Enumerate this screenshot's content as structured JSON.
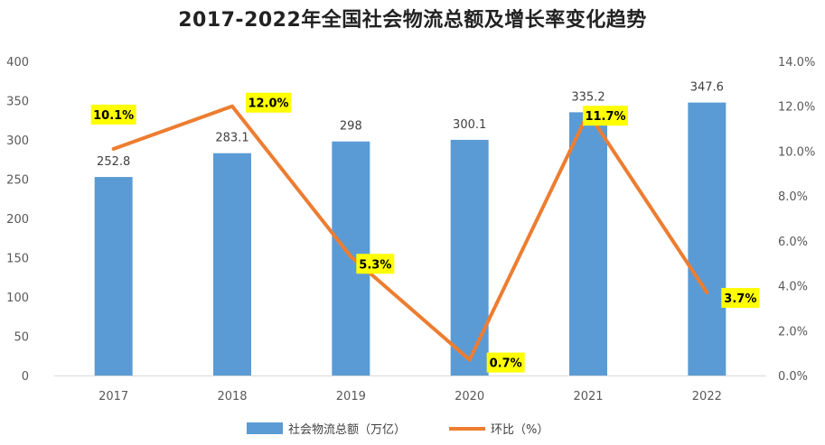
{
  "chart_data": {
    "type": "bar",
    "title": "2017-2022年全国社会物流总额及增长率变化趋势",
    "categories": [
      "2017",
      "2018",
      "2019",
      "2020",
      "2021",
      "2022"
    ],
    "series": [
      {
        "name": "社会物流总额（万亿）",
        "type": "bar",
        "axis": "left",
        "values": [
          252.8,
          283.1,
          298,
          300.1,
          335.2,
          347.6
        ],
        "labels": [
          "252.8",
          "283.1",
          "298",
          "300.1",
          "335.2",
          "347.6"
        ],
        "color": "#5B9BD5"
      },
      {
        "name": "环比（%）",
        "type": "line",
        "axis": "right",
        "values": [
          10.1,
          12.0,
          5.3,
          0.7,
          11.7,
          3.7
        ],
        "labels": [
          "10.1%",
          "12.0%",
          "5.3%",
          "0.7%",
          "11.7%",
          "3.7%"
        ],
        "color": "#ED7D31",
        "label_bg": "#FFFF00"
      }
    ],
    "y_left": {
      "min": 0,
      "max": 400,
      "step": 50,
      "ticks": [
        "0",
        "50",
        "100",
        "150",
        "200",
        "250",
        "300",
        "350",
        "400"
      ]
    },
    "y_right": {
      "min": 0,
      "max": 14,
      "step": 2,
      "ticks": [
        "0.0%",
        "2.0%",
        "4.0%",
        "6.0%",
        "8.0%",
        "10.0%",
        "12.0%",
        "14.0%"
      ]
    },
    "grid": false,
    "legend": "bottom"
  }
}
